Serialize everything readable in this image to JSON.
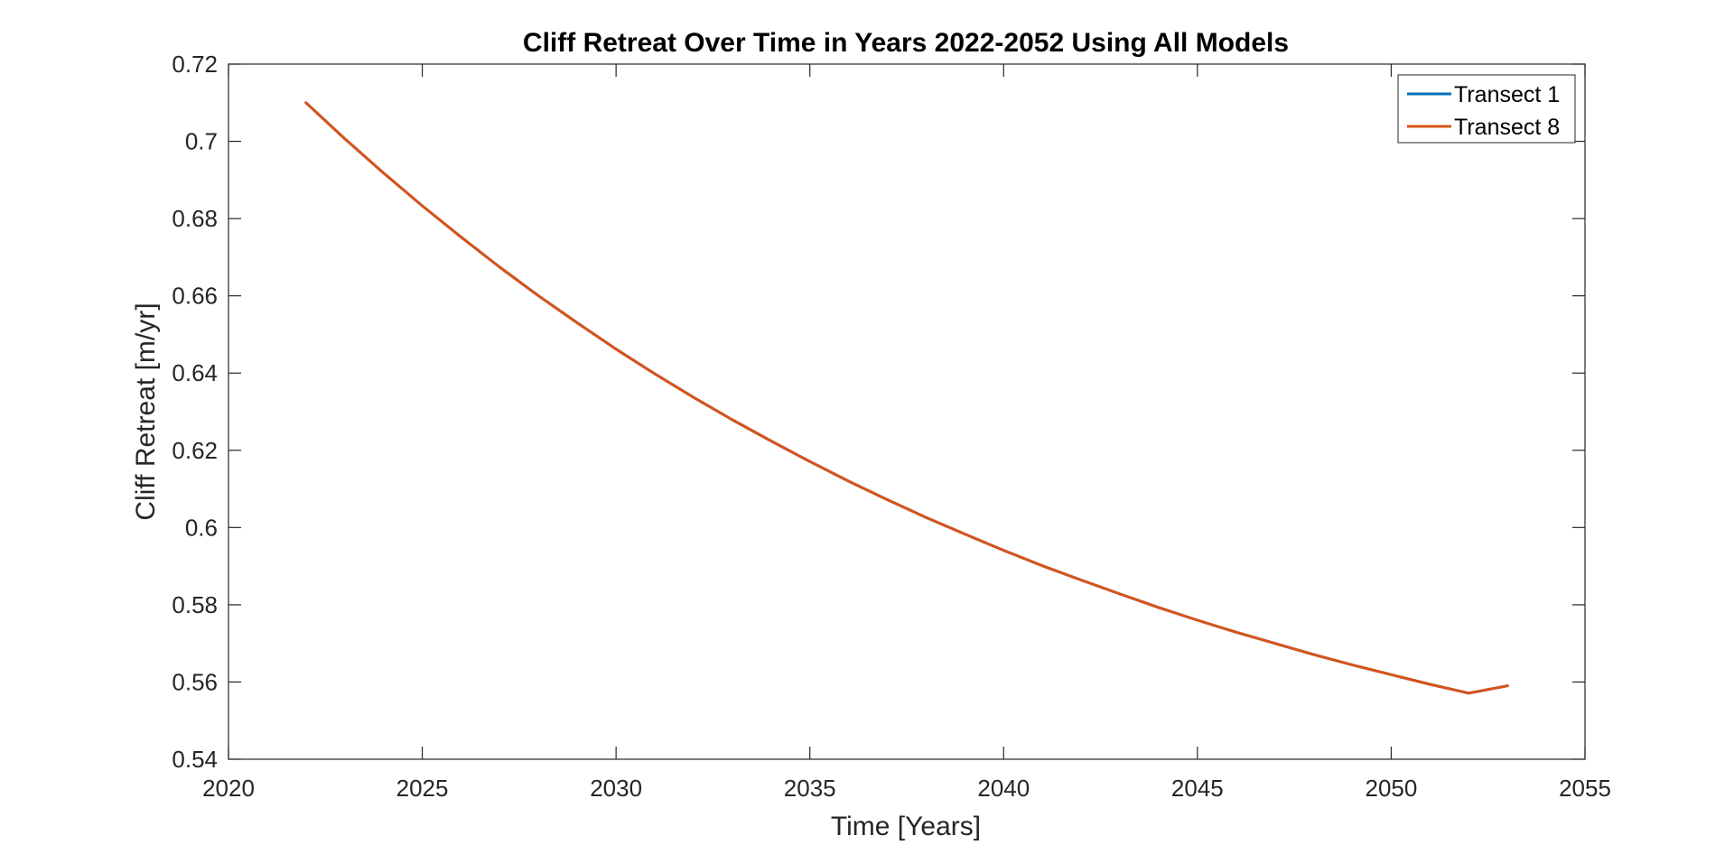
{
  "chart_data": {
    "type": "line",
    "title": "Cliff Retreat Over Time in Years 2022-2052 Using All Models",
    "xlabel": "Time [Years]",
    "ylabel": "Cliff Retreat [m/yr]",
    "xlim": [
      2020,
      2055
    ],
    "ylim": [
      0.54,
      0.72
    ],
    "xticks": [
      2020,
      2025,
      2030,
      2035,
      2040,
      2045,
      2050,
      2055
    ],
    "yticks": [
      0.54,
      0.56,
      0.58,
      0.6,
      0.62,
      0.64,
      0.66,
      0.68,
      0.7,
      0.72
    ],
    "xtick_labels": [
      "2020",
      "2025",
      "2030",
      "2035",
      "2040",
      "2045",
      "2050",
      "2055"
    ],
    "ytick_labels": [
      "0.54",
      "0.56",
      "0.58",
      "0.6",
      "0.62",
      "0.64",
      "0.66",
      "0.68",
      "0.7",
      "0.72"
    ],
    "grid": false,
    "legend_position": "top-right",
    "x": [
      2022,
      2023,
      2024,
      2025,
      2026,
      2027,
      2028,
      2029,
      2030,
      2031,
      2032,
      2033,
      2034,
      2035,
      2036,
      2037,
      2038,
      2039,
      2040,
      2041,
      2042,
      2043,
      2044,
      2045,
      2046,
      2047,
      2048,
      2049,
      2050,
      2051,
      2052,
      2053
    ],
    "series": [
      {
        "name": "Transect 1",
        "color": "#0072BD",
        "values": [
          0.71,
          0.7007,
          0.6918,
          0.6833,
          0.6752,
          0.6674,
          0.66,
          0.653,
          0.6462,
          0.6398,
          0.6337,
          0.6279,
          0.6224,
          0.6171,
          0.612,
          0.6072,
          0.6026,
          0.5983,
          0.5941,
          0.5901,
          0.5864,
          0.5828,
          0.5793,
          0.576,
          0.5729,
          0.57,
          0.5671,
          0.5644,
          0.5619,
          0.5594,
          0.5571,
          0.559
        ]
      },
      {
        "name": "Transect 8",
        "color": "#D95319",
        "values": [
          0.71,
          0.7007,
          0.6918,
          0.6833,
          0.6752,
          0.6674,
          0.66,
          0.653,
          0.6462,
          0.6398,
          0.6337,
          0.6279,
          0.6224,
          0.6171,
          0.612,
          0.6072,
          0.6026,
          0.5983,
          0.5941,
          0.5901,
          0.5864,
          0.5828,
          0.5793,
          0.576,
          0.5729,
          0.57,
          0.5671,
          0.5644,
          0.5619,
          0.5594,
          0.5571,
          0.559
        ]
      }
    ]
  }
}
